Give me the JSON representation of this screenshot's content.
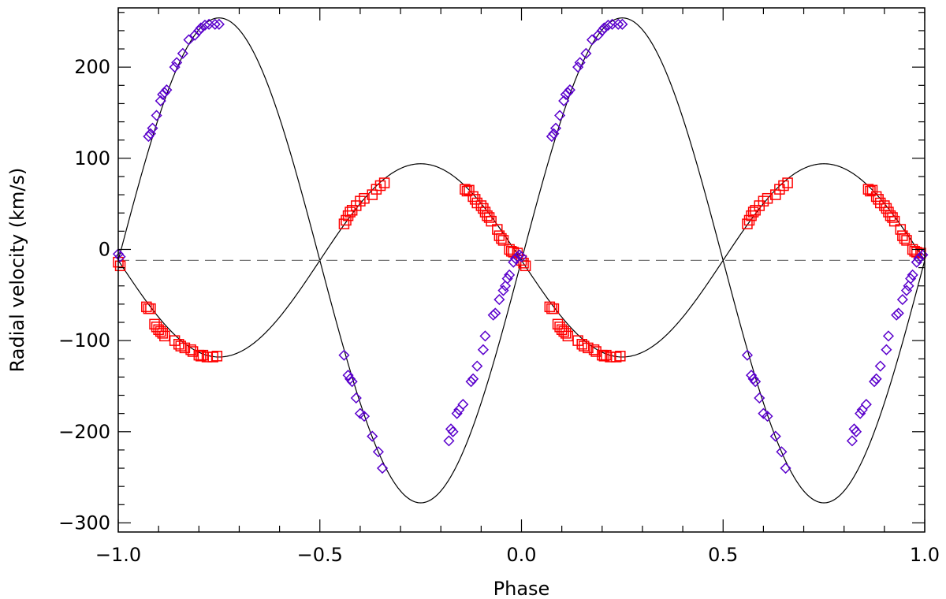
{
  "chart_data": {
    "type": "scatter",
    "title": "",
    "xlabel": "Phase",
    "ylabel": "Radial velocity (km/s)",
    "xlim": [
      -1.0,
      1.0
    ],
    "ylim": [
      -310,
      265
    ],
    "x_ticks": [
      -1.0,
      -0.5,
      0.0,
      0.5,
      1.0
    ],
    "x_tick_labels": [
      "−1.0",
      "−0.5",
      "0.0",
      "0.5",
      "1.0"
    ],
    "y_ticks": [
      -300,
      -200,
      -100,
      0,
      100,
      200
    ],
    "y_tick_labels": [
      "−300",
      "−200",
      "−100",
      "0",
      "100",
      "200"
    ],
    "grid": false,
    "systemic_velocity": -12,
    "colors": {
      "primary": "#ff0000",
      "secondary": "#5a00cc",
      "curve": "#000000",
      "systemic": "#777777"
    },
    "series": [
      {
        "marker": "square",
        "values": [
          [
            -1.0,
            -14
          ],
          [
            -0.995,
            -18
          ],
          [
            -0.93,
            -63
          ],
          [
            -0.925,
            -65
          ],
          [
            -0.92,
            -65
          ],
          [
            -0.91,
            -82
          ],
          [
            -0.905,
            -85
          ],
          [
            -0.9,
            -88
          ],
          [
            -0.895,
            -90
          ],
          [
            -0.89,
            -92
          ],
          [
            -0.885,
            -95
          ],
          [
            -0.86,
            -100
          ],
          [
            -0.85,
            -104
          ],
          [
            -0.845,
            -106
          ],
          [
            -0.835,
            -108
          ],
          [
            -0.82,
            -110
          ],
          [
            -0.815,
            -112
          ],
          [
            -0.8,
            -116
          ],
          [
            -0.795,
            -117
          ],
          [
            -0.79,
            -116
          ],
          [
            -0.78,
            -118
          ],
          [
            -0.765,
            -118
          ],
          [
            -0.755,
            -117
          ],
          [
            -0.44,
            28
          ],
          [
            -0.435,
            32
          ],
          [
            -0.43,
            37
          ],
          [
            -0.425,
            41
          ],
          [
            -0.42,
            43
          ],
          [
            -0.41,
            48
          ],
          [
            -0.4,
            53
          ],
          [
            -0.39,
            56
          ],
          [
            -0.37,
            60
          ],
          [
            -0.36,
            66
          ],
          [
            -0.35,
            70
          ],
          [
            -0.34,
            73
          ],
          [
            -0.14,
            66
          ],
          [
            -0.135,
            64
          ],
          [
            -0.13,
            65
          ],
          [
            -0.12,
            58
          ],
          [
            -0.115,
            55
          ],
          [
            -0.11,
            51
          ],
          [
            -0.1,
            48
          ],
          [
            -0.095,
            45
          ],
          [
            -0.09,
            41
          ],
          [
            -0.085,
            37
          ],
          [
            -0.08,
            35
          ],
          [
            -0.075,
            31
          ],
          [
            -0.06,
            22
          ],
          [
            -0.055,
            15
          ],
          [
            -0.05,
            12
          ],
          [
            -0.045,
            10
          ],
          [
            -0.03,
            0
          ],
          [
            -0.025,
            -2
          ],
          [
            -0.02,
            -3
          ],
          [
            -0.01,
            -4
          ],
          [
            0.0,
            -12
          ],
          [
            0.005,
            -15
          ],
          [
            0.01,
            -18
          ],
          [
            0.07,
            -63
          ],
          [
            0.075,
            -65
          ],
          [
            0.08,
            -65
          ],
          [
            0.09,
            -82
          ],
          [
            0.095,
            -85
          ],
          [
            0.1,
            -88
          ],
          [
            0.105,
            -90
          ],
          [
            0.11,
            -92
          ],
          [
            0.115,
            -95
          ],
          [
            0.14,
            -100
          ],
          [
            0.15,
            -104
          ],
          [
            0.155,
            -106
          ],
          [
            0.165,
            -108
          ],
          [
            0.18,
            -110
          ],
          [
            0.185,
            -112
          ],
          [
            0.2,
            -116
          ],
          [
            0.205,
            -117
          ],
          [
            0.21,
            -116
          ],
          [
            0.22,
            -118
          ],
          [
            0.235,
            -118
          ],
          [
            0.245,
            -117
          ],
          [
            0.56,
            28
          ],
          [
            0.565,
            32
          ],
          [
            0.57,
            37
          ],
          [
            0.575,
            41
          ],
          [
            0.58,
            43
          ],
          [
            0.59,
            48
          ],
          [
            0.6,
            53
          ],
          [
            0.61,
            56
          ],
          [
            0.63,
            60
          ],
          [
            0.64,
            66
          ],
          [
            0.65,
            70
          ],
          [
            0.66,
            73
          ],
          [
            0.86,
            66
          ],
          [
            0.865,
            64
          ],
          [
            0.87,
            65
          ],
          [
            0.88,
            58
          ],
          [
            0.885,
            55
          ],
          [
            0.89,
            51
          ],
          [
            0.9,
            48
          ],
          [
            0.905,
            45
          ],
          [
            0.91,
            41
          ],
          [
            0.915,
            37
          ],
          [
            0.92,
            35
          ],
          [
            0.925,
            31
          ],
          [
            0.94,
            22
          ],
          [
            0.945,
            15
          ],
          [
            0.95,
            12
          ],
          [
            0.955,
            10
          ],
          [
            0.97,
            0
          ],
          [
            0.975,
            -2
          ],
          [
            0.98,
            -3
          ],
          [
            0.99,
            -4
          ]
        ]
      },
      {
        "marker": "diamond",
        "values": [
          [
            -1.0,
            -5
          ],
          [
            -0.995,
            -8
          ],
          [
            -0.925,
            124
          ],
          [
            -0.92,
            127
          ],
          [
            -0.915,
            133
          ],
          [
            -0.905,
            147
          ],
          [
            -0.895,
            163
          ],
          [
            -0.89,
            170
          ],
          [
            -0.885,
            172
          ],
          [
            -0.88,
            175
          ],
          [
            -0.86,
            200
          ],
          [
            -0.855,
            205
          ],
          [
            -0.84,
            215
          ],
          [
            -0.825,
            230
          ],
          [
            -0.81,
            235
          ],
          [
            -0.8,
            240
          ],
          [
            -0.795,
            243
          ],
          [
            -0.785,
            246
          ],
          [
            -0.775,
            247
          ],
          [
            -0.76,
            247
          ],
          [
            -0.75,
            247
          ],
          [
            -0.44,
            -116
          ],
          [
            -0.43,
            -138
          ],
          [
            -0.425,
            -142
          ],
          [
            -0.42,
            -145
          ],
          [
            -0.41,
            -163
          ],
          [
            -0.4,
            -180
          ],
          [
            -0.39,
            -183
          ],
          [
            -0.37,
            -205
          ],
          [
            -0.355,
            -222
          ],
          [
            -0.345,
            -240
          ],
          [
            -0.18,
            -210
          ],
          [
            -0.175,
            -197
          ],
          [
            -0.17,
            -200
          ],
          [
            -0.16,
            -180
          ],
          [
            -0.155,
            -176
          ],
          [
            -0.145,
            -170
          ],
          [
            -0.125,
            -145
          ],
          [
            -0.12,
            -142
          ],
          [
            -0.11,
            -128
          ],
          [
            -0.095,
            -110
          ],
          [
            -0.09,
            -95
          ],
          [
            -0.07,
            -72
          ],
          [
            -0.065,
            -70
          ],
          [
            -0.055,
            -55
          ],
          [
            -0.045,
            -45
          ],
          [
            -0.04,
            -40
          ],
          [
            -0.035,
            -32
          ],
          [
            -0.03,
            -28
          ],
          [
            -0.02,
            -14
          ],
          [
            -0.015,
            -10
          ],
          [
            -0.01,
            -8
          ],
          [
            -0.005,
            -6
          ],
          [
            0.0,
            -8
          ],
          [
            0.075,
            124
          ],
          [
            0.08,
            127
          ],
          [
            0.085,
            133
          ],
          [
            0.095,
            147
          ],
          [
            0.105,
            163
          ],
          [
            0.11,
            170
          ],
          [
            0.115,
            172
          ],
          [
            0.12,
            175
          ],
          [
            0.14,
            200
          ],
          [
            0.145,
            205
          ],
          [
            0.16,
            215
          ],
          [
            0.175,
            230
          ],
          [
            0.19,
            235
          ],
          [
            0.2,
            240
          ],
          [
            0.205,
            243
          ],
          [
            0.215,
            246
          ],
          [
            0.225,
            247
          ],
          [
            0.24,
            247
          ],
          [
            0.25,
            247
          ],
          [
            0.56,
            -116
          ],
          [
            0.57,
            -138
          ],
          [
            0.575,
            -142
          ],
          [
            0.58,
            -145
          ],
          [
            0.59,
            -163
          ],
          [
            0.6,
            -180
          ],
          [
            0.61,
            -183
          ],
          [
            0.63,
            -205
          ],
          [
            0.645,
            -222
          ],
          [
            0.655,
            -240
          ],
          [
            0.82,
            -210
          ],
          [
            0.825,
            -197
          ],
          [
            0.83,
            -200
          ],
          [
            0.84,
            -180
          ],
          [
            0.845,
            -176
          ],
          [
            0.855,
            -170
          ],
          [
            0.875,
            -145
          ],
          [
            0.88,
            -142
          ],
          [
            0.89,
            -128
          ],
          [
            0.905,
            -110
          ],
          [
            0.91,
            -95
          ],
          [
            0.93,
            -72
          ],
          [
            0.935,
            -70
          ],
          [
            0.945,
            -55
          ],
          [
            0.955,
            -45
          ],
          [
            0.96,
            -40
          ],
          [
            0.965,
            -32
          ],
          [
            0.97,
            -28
          ],
          [
            0.98,
            -14
          ],
          [
            0.985,
            -10
          ],
          [
            0.99,
            -8
          ],
          [
            0.995,
            -6
          ]
        ]
      }
    ],
    "model_curves": [
      {
        "semi_amplitude": 266,
        "systemic": -12,
        "phase_of_max": 0.25,
        "period_in_phase": 1.0
      },
      {
        "semi_amplitude": 106,
        "systemic": -12,
        "phase_of_max": 0.75,
        "period_in_phase": 1.0
      }
    ]
  }
}
